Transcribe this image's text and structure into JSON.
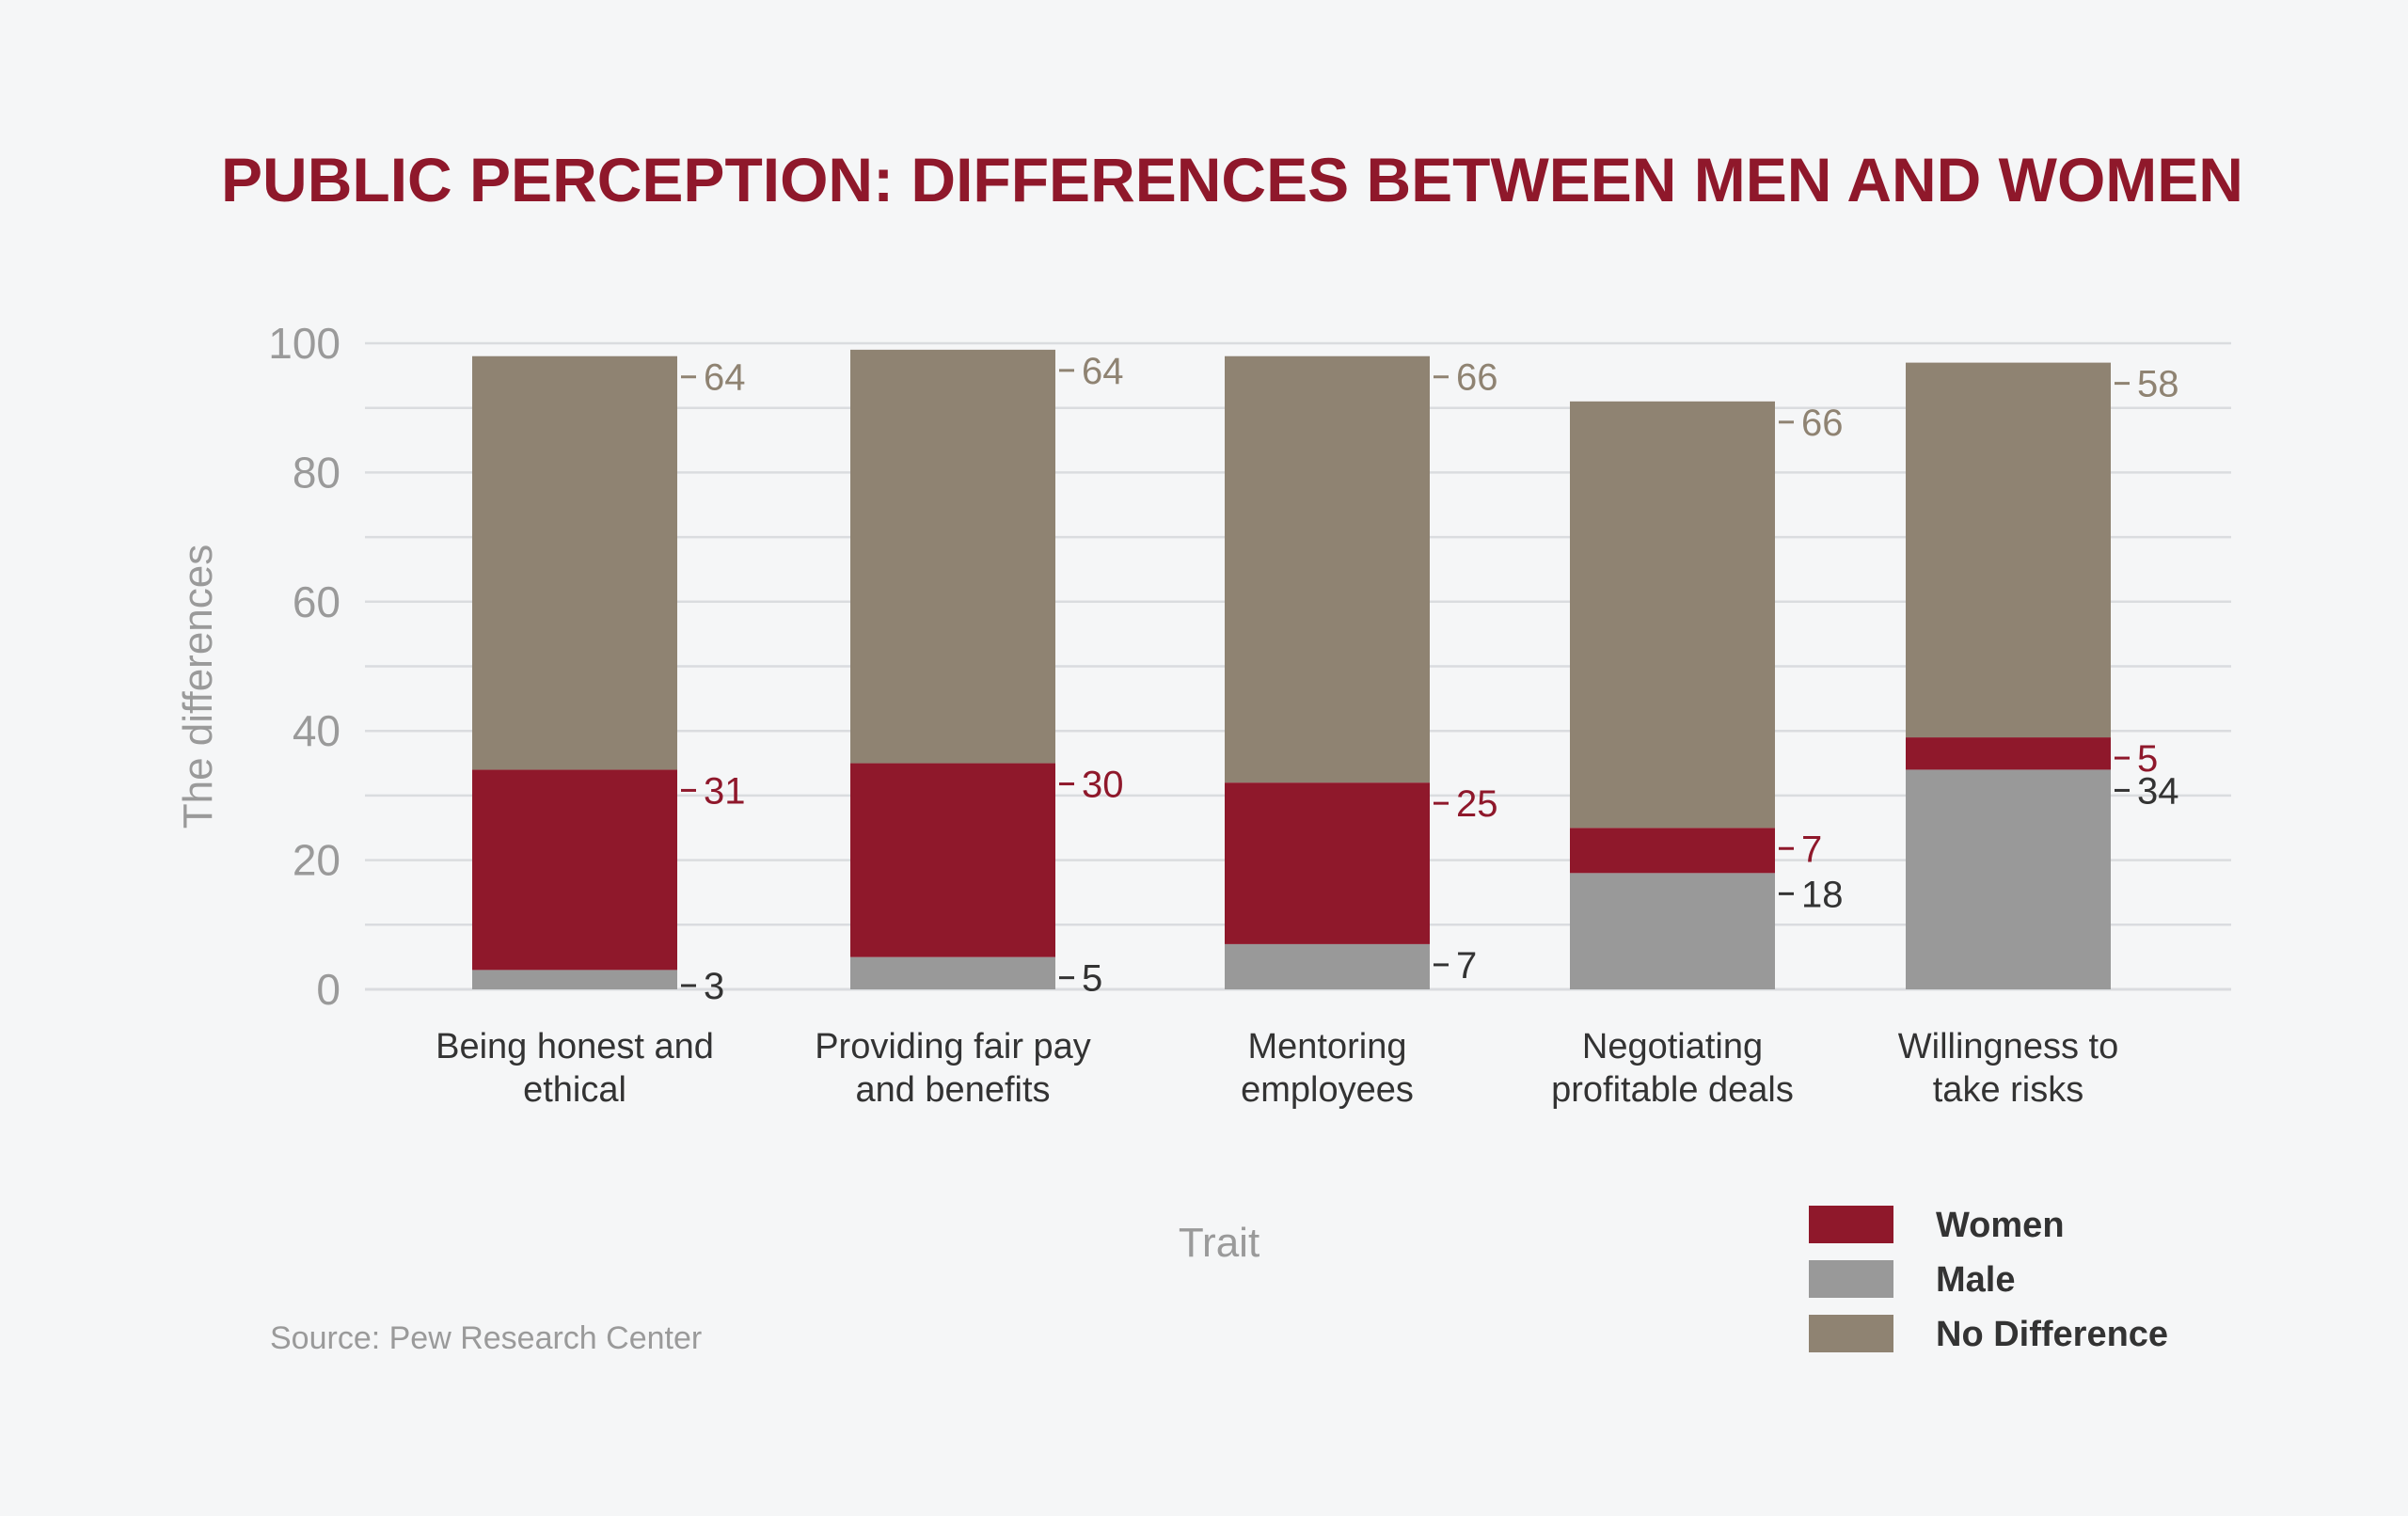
{
  "chart_data": {
    "type": "bar",
    "stacked": true,
    "title": "PUBLIC PERCEPTION: DIFFERENCES BETWEEN MEN AND WOMEN",
    "xlabel": "Trait",
    "ylabel": "The differences",
    "ylim": [
      0,
      100
    ],
    "yticks": [
      "0",
      "20",
      "40",
      "60",
      "80",
      "100"
    ],
    "grid": true,
    "legend_position": "bottom-right",
    "categories": [
      [
        "Being honest and",
        "ethical"
      ],
      [
        "Providing fair pay",
        "and benefits"
      ],
      [
        "Mentoring",
        "employees"
      ],
      [
        "Negotiating",
        "profitable deals"
      ],
      [
        "Willingness to",
        "take risks"
      ]
    ],
    "series": [
      {
        "name": "Male",
        "color": "#999999",
        "label_color": "#333333",
        "values": [
          3,
          5,
          7,
          18,
          34
        ]
      },
      {
        "name": "Women",
        "color": "#8f182b",
        "label_color": "#8f182b",
        "values": [
          31,
          30,
          25,
          7,
          5
        ]
      },
      {
        "name": "No Difference",
        "color": "#8f8372",
        "label_color": "#8f8372",
        "values": [
          64,
          64,
          66,
          66,
          58
        ]
      }
    ],
    "legend": [
      "Women",
      "Male",
      "No Difference"
    ],
    "source": "Source: Pew Research Center"
  },
  "colors": {
    "title": "#8f182b",
    "axis_text": "#9a9a9a",
    "grid": "#dadcdf",
    "category_text": "#333333"
  }
}
